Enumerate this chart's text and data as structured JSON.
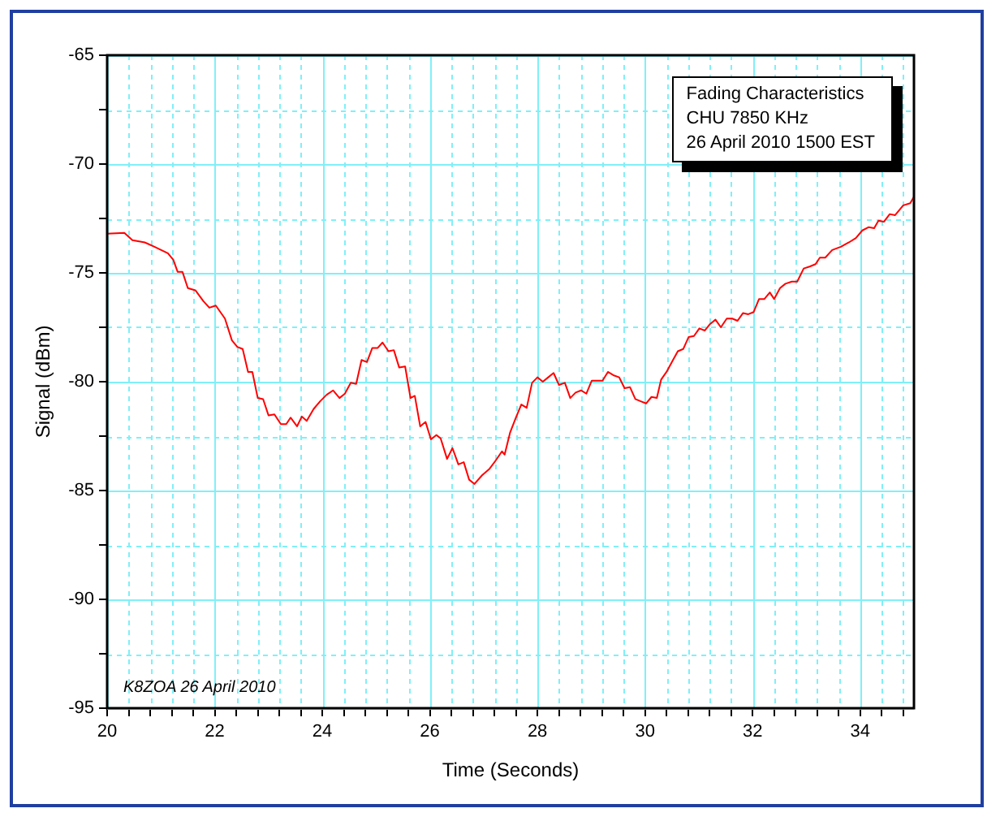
{
  "chart_data": {
    "type": "line",
    "xlabel": "Time (Seconds)",
    "ylabel": "Signal (dBm)",
    "x": [
      20,
      20.32,
      20.47,
      20.7,
      20.88,
      21.13,
      21.23,
      21.31,
      21.4,
      21.5,
      21.64,
      21.79,
      21.9,
      22.02,
      22.19,
      22.32,
      22.42,
      22.52,
      22.62,
      22.7,
      22.8,
      22.9,
      23.0,
      23.11,
      23.23,
      23.33,
      23.41,
      23.53,
      23.62,
      23.71,
      23.84,
      23.96,
      24.08,
      24.2,
      24.32,
      24.42,
      24.53,
      24.63,
      24.73,
      24.83,
      24.93,
      25.03,
      25.12,
      25.23,
      25.33,
      25.43,
      25.54,
      25.64,
      25.72,
      25.82,
      25.92,
      26.02,
      26.12,
      26.2,
      26.32,
      26.42,
      26.53,
      26.63,
      26.73,
      26.83,
      26.97,
      27.11,
      27.23,
      27.34,
      27.39,
      27.49,
      27.6,
      27.7,
      27.8,
      27.9,
      28.0,
      28.1,
      28.2,
      28.3,
      28.4,
      28.51,
      28.61,
      28.71,
      28.81,
      28.91,
      29.01,
      29.11,
      29.21,
      29.31,
      29.41,
      29.52,
      29.62,
      29.72,
      29.82,
      29.92,
      30.02,
      30.12,
      30.22,
      30.3,
      30.4,
      30.51,
      30.61,
      30.71,
      30.81,
      30.91,
      31.01,
      31.11,
      31.21,
      31.31,
      31.41,
      31.52,
      31.62,
      31.72,
      31.82,
      31.92,
      32.02,
      32.12,
      32.22,
      32.32,
      32.4,
      32.51,
      32.61,
      32.73,
      32.83,
      32.95,
      33.07,
      33.17,
      33.25,
      33.35,
      33.48,
      33.64,
      33.79,
      33.92,
      34.04,
      34.16,
      34.26,
      34.34,
      34.44,
      34.55,
      34.65,
      34.8,
      34.93,
      35
    ],
    "series": [
      {
        "color": "#ff0000",
        "values": [
          -73.2,
          -73.16,
          -73.5,
          -73.6,
          -73.8,
          -74.1,
          -74.4,
          -74.95,
          -74.95,
          -75.7,
          -75.8,
          -76.3,
          -76.6,
          -76.5,
          -77.1,
          -78.1,
          -78.4,
          -78.5,
          -79.55,
          -79.55,
          -80.75,
          -80.8,
          -81.55,
          -81.5,
          -81.95,
          -81.95,
          -81.65,
          -82.05,
          -81.6,
          -81.8,
          -81.25,
          -80.9,
          -80.6,
          -80.4,
          -80.75,
          -80.55,
          -80.05,
          -80.1,
          -79.0,
          -79.1,
          -78.45,
          -78.45,
          -78.2,
          -78.6,
          -78.55,
          -79.35,
          -79.3,
          -80.75,
          -80.65,
          -82.05,
          -81.85,
          -82.65,
          -82.45,
          -82.6,
          -83.55,
          -83.05,
          -83.8,
          -83.7,
          -84.5,
          -84.7,
          -84.3,
          -84.0,
          -83.6,
          -83.2,
          -83.35,
          -82.35,
          -81.65,
          -81.05,
          -81.2,
          -80.05,
          -79.8,
          -80.0,
          -79.8,
          -79.6,
          -80.15,
          -80.05,
          -80.75,
          -80.5,
          -80.4,
          -80.55,
          -79.95,
          -79.95,
          -79.95,
          -79.55,
          -79.7,
          -79.8,
          -80.3,
          -80.25,
          -80.8,
          -80.9,
          -81.0,
          -80.7,
          -80.75,
          -79.9,
          -79.55,
          -79.05,
          -78.6,
          -78.5,
          -77.95,
          -77.9,
          -77.55,
          -77.65,
          -77.35,
          -77.15,
          -77.5,
          -77.1,
          -77.1,
          -77.2,
          -76.85,
          -76.9,
          -76.8,
          -76.2,
          -76.2,
          -75.9,
          -76.2,
          -75.7,
          -75.5,
          -75.4,
          -75.4,
          -74.8,
          -74.7,
          -74.6,
          -74.3,
          -74.3,
          -73.95,
          -73.8,
          -73.6,
          -73.4,
          -73.05,
          -72.9,
          -72.95,
          -72.6,
          -72.65,
          -72.3,
          -72.35,
          -71.9,
          -71.8,
          -71.5
        ]
      }
    ],
    "xlim": [
      20,
      35
    ],
    "xticks": [
      20,
      {
        "value": 20.4,
        "label": null
      },
      {
        "value": 20.8,
        "label": null
      },
      {
        "value": 21.2,
        "label": null
      },
      {
        "value": 21.6,
        "label": null
      },
      22,
      {
        "value": 22.4,
        "label": null
      },
      {
        "value": 22.8,
        "label": null
      },
      {
        "value": 23.2,
        "label": null
      },
      {
        "value": 23.6,
        "label": null
      },
      24,
      {
        "value": 24.4,
        "label": null
      },
      {
        "value": 24.8,
        "label": null
      },
      {
        "value": 25.2,
        "label": null
      },
      {
        "value": 25.6,
        "label": null
      },
      26,
      {
        "value": 26.4,
        "label": null
      },
      {
        "value": 26.8,
        "label": null
      },
      {
        "value": 27.2,
        "label": null
      },
      {
        "value": 27.6,
        "label": null
      },
      28,
      {
        "value": 28.4,
        "label": null
      },
      {
        "value": 28.8,
        "label": null
      },
      {
        "value": 29.2,
        "label": null
      },
      {
        "value": 29.6,
        "label": null
      },
      30,
      {
        "value": 30.4,
        "label": null
      },
      {
        "value": 30.8,
        "label": null
      },
      {
        "value": 31.2,
        "label": null
      },
      {
        "value": 31.6,
        "label": null
      },
      32,
      {
        "value": 32.4,
        "label": null
      },
      {
        "value": 32.8,
        "label": null
      },
      {
        "value": 33.2,
        "label": null
      },
      {
        "value": 33.6,
        "label": null
      },
      34,
      {
        "value": 34.4,
        "label": null
      },
      {
        "value": 34.8,
        "label": null
      }
    ],
    "ylim": [
      -95,
      -65
    ],
    "yticks": [
      -95,
      {
        "value": -92.5,
        "label": null
      },
      -90,
      {
        "value": -87.5,
        "label": null
      },
      -85,
      {
        "value": -82.5,
        "label": null
      },
      -80,
      {
        "value": -77.5,
        "label": null
      },
      -75,
      {
        "value": -72.5,
        "label": null
      },
      -70,
      {
        "value": -67.5,
        "label": null
      },
      -65
    ],
    "grid": true,
    "marker": "none",
    "line_style": "solid",
    "legend": false,
    "annotations": [
      "Fading Characteristics\nCHU 7850 KHz\n26 April 2010 1500 EST",
      "K8ZOA 26 April 2010"
    ]
  }
}
